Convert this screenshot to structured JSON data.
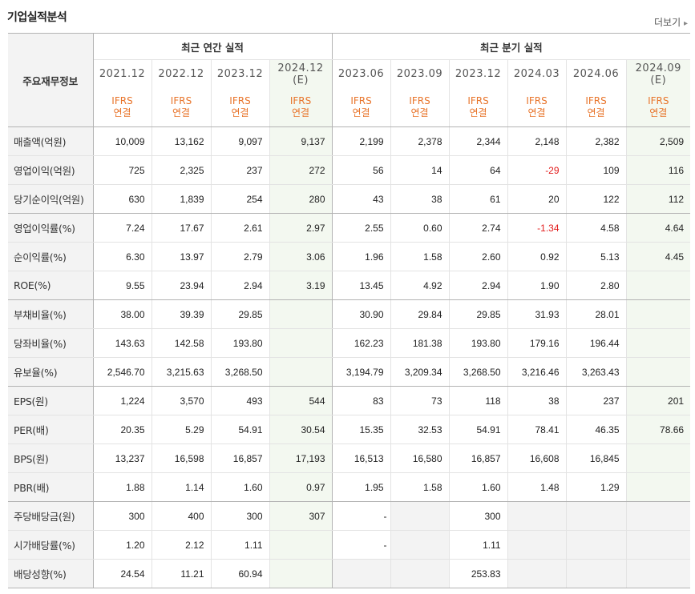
{
  "title": "기업실적분석",
  "more": "더보기",
  "row_header": "주요재무정보",
  "groups": {
    "annual": "최근 연간 실적",
    "quarter": "최근 분기 실적"
  },
  "periods": [
    "2021.12",
    "2022.12",
    "2023.12",
    "2024.12",
    "2023.06",
    "2023.09",
    "2023.12",
    "2024.03",
    "2024.06",
    "2024.09"
  ],
  "period_est": [
    "",
    "",
    "",
    "(E)",
    "",
    "",
    "",
    "",
    "",
    "(E)"
  ],
  "basis": {
    "line1": "IFRS",
    "line2": "연결"
  },
  "rows": [
    {
      "label": "매출액(억원)",
      "values": [
        "10,009",
        "13,162",
        "9,097",
        "9,137",
        "2,199",
        "2,378",
        "2,344",
        "2,148",
        "2,382",
        "2,509"
      ]
    },
    {
      "label": "영업이익(억원)",
      "values": [
        "725",
        "2,325",
        "237",
        "272",
        "56",
        "14",
        "64",
        "-29",
        "109",
        "116"
      ]
    },
    {
      "label": "당기순이익(억원)",
      "values": [
        "630",
        "1,839",
        "254",
        "280",
        "43",
        "38",
        "61",
        "20",
        "122",
        "112"
      ]
    },
    {
      "label": "영업이익률(%)",
      "values": [
        "7.24",
        "17.67",
        "2.61",
        "2.97",
        "2.55",
        "0.60",
        "2.74",
        "-1.34",
        "4.58",
        "4.64"
      ]
    },
    {
      "label": "순이익률(%)",
      "values": [
        "6.30",
        "13.97",
        "2.79",
        "3.06",
        "1.96",
        "1.58",
        "2.60",
        "0.92",
        "5.13",
        "4.45"
      ]
    },
    {
      "label": "ROE(%)",
      "values": [
        "9.55",
        "23.94",
        "2.94",
        "3.19",
        "13.45",
        "4.92",
        "2.94",
        "1.90",
        "2.80",
        ""
      ]
    },
    {
      "label": "부채비율(%)",
      "values": [
        "38.00",
        "39.39",
        "29.85",
        "",
        "30.90",
        "29.84",
        "29.85",
        "31.93",
        "28.01",
        ""
      ]
    },
    {
      "label": "당좌비율(%)",
      "values": [
        "143.63",
        "142.58",
        "193.80",
        "",
        "162.23",
        "181.38",
        "193.80",
        "179.16",
        "196.44",
        ""
      ]
    },
    {
      "label": "유보율(%)",
      "values": [
        "2,546.70",
        "3,215.63",
        "3,268.50",
        "",
        "3,194.79",
        "3,209.34",
        "3,268.50",
        "3,216.46",
        "3,263.43",
        ""
      ]
    },
    {
      "label": "EPS(원)",
      "values": [
        "1,224",
        "3,570",
        "493",
        "544",
        "83",
        "73",
        "118",
        "38",
        "237",
        "201"
      ]
    },
    {
      "label": "PER(배)",
      "values": [
        "20.35",
        "5.29",
        "54.91",
        "30.54",
        "15.35",
        "32.53",
        "54.91",
        "78.41",
        "46.35",
        "78.66"
      ]
    },
    {
      "label": "BPS(원)",
      "values": [
        "13,237",
        "16,598",
        "16,857",
        "17,193",
        "16,513",
        "16,580",
        "16,857",
        "16,608",
        "16,845",
        ""
      ]
    },
    {
      "label": "PBR(배)",
      "values": [
        "1.88",
        "1.14",
        "1.60",
        "0.97",
        "1.95",
        "1.58",
        "1.60",
        "1.48",
        "1.29",
        ""
      ]
    },
    {
      "label": "주당배당금(원)",
      "values": [
        "300",
        "400",
        "300",
        "307",
        "-",
        "",
        "300",
        "",
        "",
        ""
      ]
    },
    {
      "label": "시가배당률(%)",
      "values": [
        "1.20",
        "2.12",
        "1.11",
        "",
        "-",
        "",
        "1.11",
        "",
        "",
        ""
      ]
    },
    {
      "label": "배당성향(%)",
      "values": [
        "24.54",
        "11.21",
        "60.94",
        "",
        "",
        "",
        "253.83",
        "",
        "",
        ""
      ]
    }
  ],
  "group_ends": [
    2,
    5,
    8,
    12
  ],
  "gray_cells": [
    [
      13,
      5
    ],
    [
      14,
      5
    ],
    [
      15,
      4
    ],
    [
      15,
      5
    ],
    [
      13,
      7
    ],
    [
      13,
      8
    ],
    [
      13,
      9
    ],
    [
      14,
      7
    ],
    [
      14,
      8
    ],
    [
      14,
      9
    ],
    [
      15,
      7
    ],
    [
      15,
      8
    ],
    [
      15,
      9
    ]
  ],
  "colors": {
    "negative": "#e21d1d",
    "basis": "#e8742a",
    "estimate_bg": "#f3f8f0",
    "header_bg": "#f3f3f3"
  }
}
